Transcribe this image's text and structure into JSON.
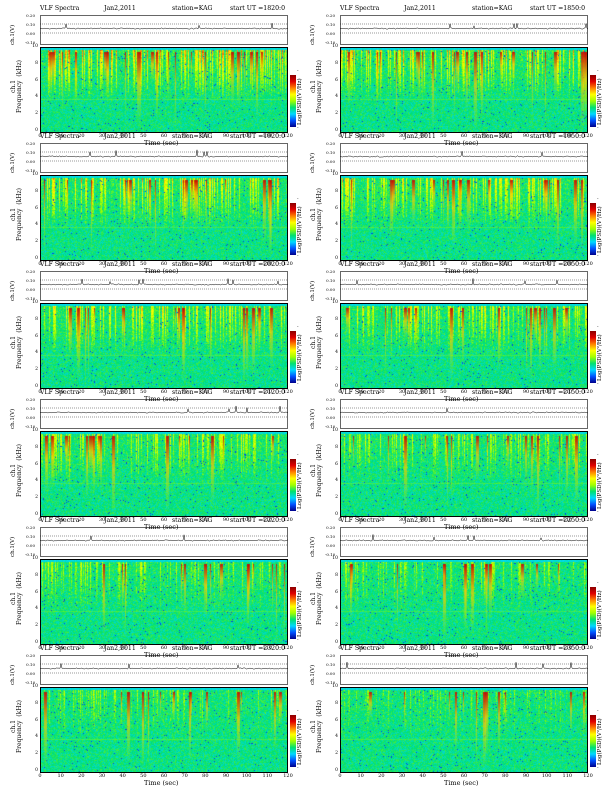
{
  "chart_data": {
    "type": "heatmap",
    "header": {
      "title": "VLF Spectra",
      "date": "Jan2,2011",
      "station": "station=KAG"
    },
    "panels": [
      {
        "ut": "start  UT =1820:0"
      },
      {
        "ut": "start  UT =1850:0"
      },
      {
        "ut": "start  UT =1920:0"
      },
      {
        "ut": "start  UT =1950:0"
      },
      {
        "ut": "start  UT =2020:0"
      },
      {
        "ut": "start  UT =2050:0"
      },
      {
        "ut": "start  UT =2120:0"
      },
      {
        "ut": "start  UT =2150:0"
      },
      {
        "ut": "start  UT =2220:0"
      },
      {
        "ut": "start  UT =2250:0"
      },
      {
        "ut": "start  UT =2320:0"
      },
      {
        "ut": "start  UT =2350:0"
      }
    ],
    "ts_ylabel": "ch.1(V)",
    "ts_ticks": [
      "0.20",
      "0.10",
      "0.00",
      "-0.10"
    ],
    "spec_ylabel": "ch.1\nFrequency  (kHz)",
    "xlabel": "Time  (sec)",
    "x_ticks": [
      "0",
      "10",
      "20",
      "30",
      "40",
      "50",
      "60",
      "70",
      "80",
      "90",
      "100",
      "110",
      "120"
    ],
    "y_ticks": [
      "0",
      "2",
      "4",
      "6",
      "8",
      "10"
    ],
    "xlim": [
      0,
      120
    ],
    "ylim": [
      0,
      10
    ],
    "colorbar_label": "Log(PSD)(V²/Hz)",
    "colorbar_ticks": [
      "-",
      "-"
    ],
    "colors": [
      "#00008b",
      "#0050ff",
      "#00d8ff",
      "#00e070",
      "#a0ff00",
      "#ffff00",
      "#ff8000",
      "#e00000",
      "#8b0000"
    ]
  }
}
